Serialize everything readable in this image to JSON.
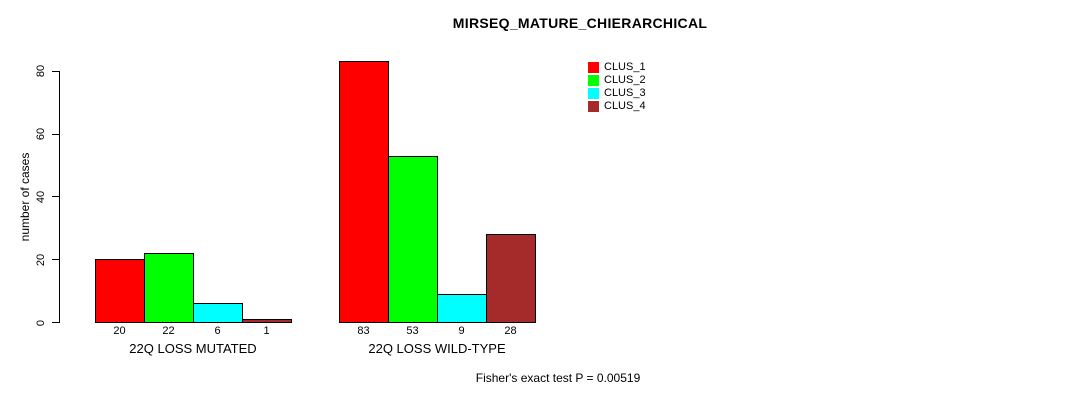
{
  "title": "MIRSEQ_MATURE_CHIERARCHICAL",
  "footnote": "Fisher's exact test P = 0.00519",
  "axis_color": "#000000",
  "background_color": "#ffffff",
  "chart_data": {
    "type": "bar",
    "title": "MIRSEQ_MATURE_CHIERARCHICAL",
    "xlabel": "",
    "ylabel": "number of cases",
    "ylim": [
      0,
      80
    ],
    "yticks": [
      0,
      20,
      40,
      60,
      80
    ],
    "grid": false,
    "legend_position": "top-right",
    "categories": [
      "22Q LOSS MUTATED",
      "22Q LOSS WILD-TYPE"
    ],
    "series": [
      {
        "name": "CLUS_1",
        "color": "#ff0000",
        "values": [
          20,
          83
        ]
      },
      {
        "name": "CLUS_2",
        "color": "#00ff00",
        "values": [
          22,
          53
        ]
      },
      {
        "name": "CLUS_3",
        "color": "#00ffff",
        "values": [
          6,
          9
        ]
      },
      {
        "name": "CLUS_4",
        "color": "#a52a2a",
        "values": [
          1,
          28
        ]
      }
    ],
    "bar_value_labels": [
      [
        "20",
        "22",
        "6",
        "1"
      ],
      [
        "83",
        "53",
        "9",
        "28"
      ]
    ],
    "annotation": "Fisher's exact test P = 0.00519"
  }
}
